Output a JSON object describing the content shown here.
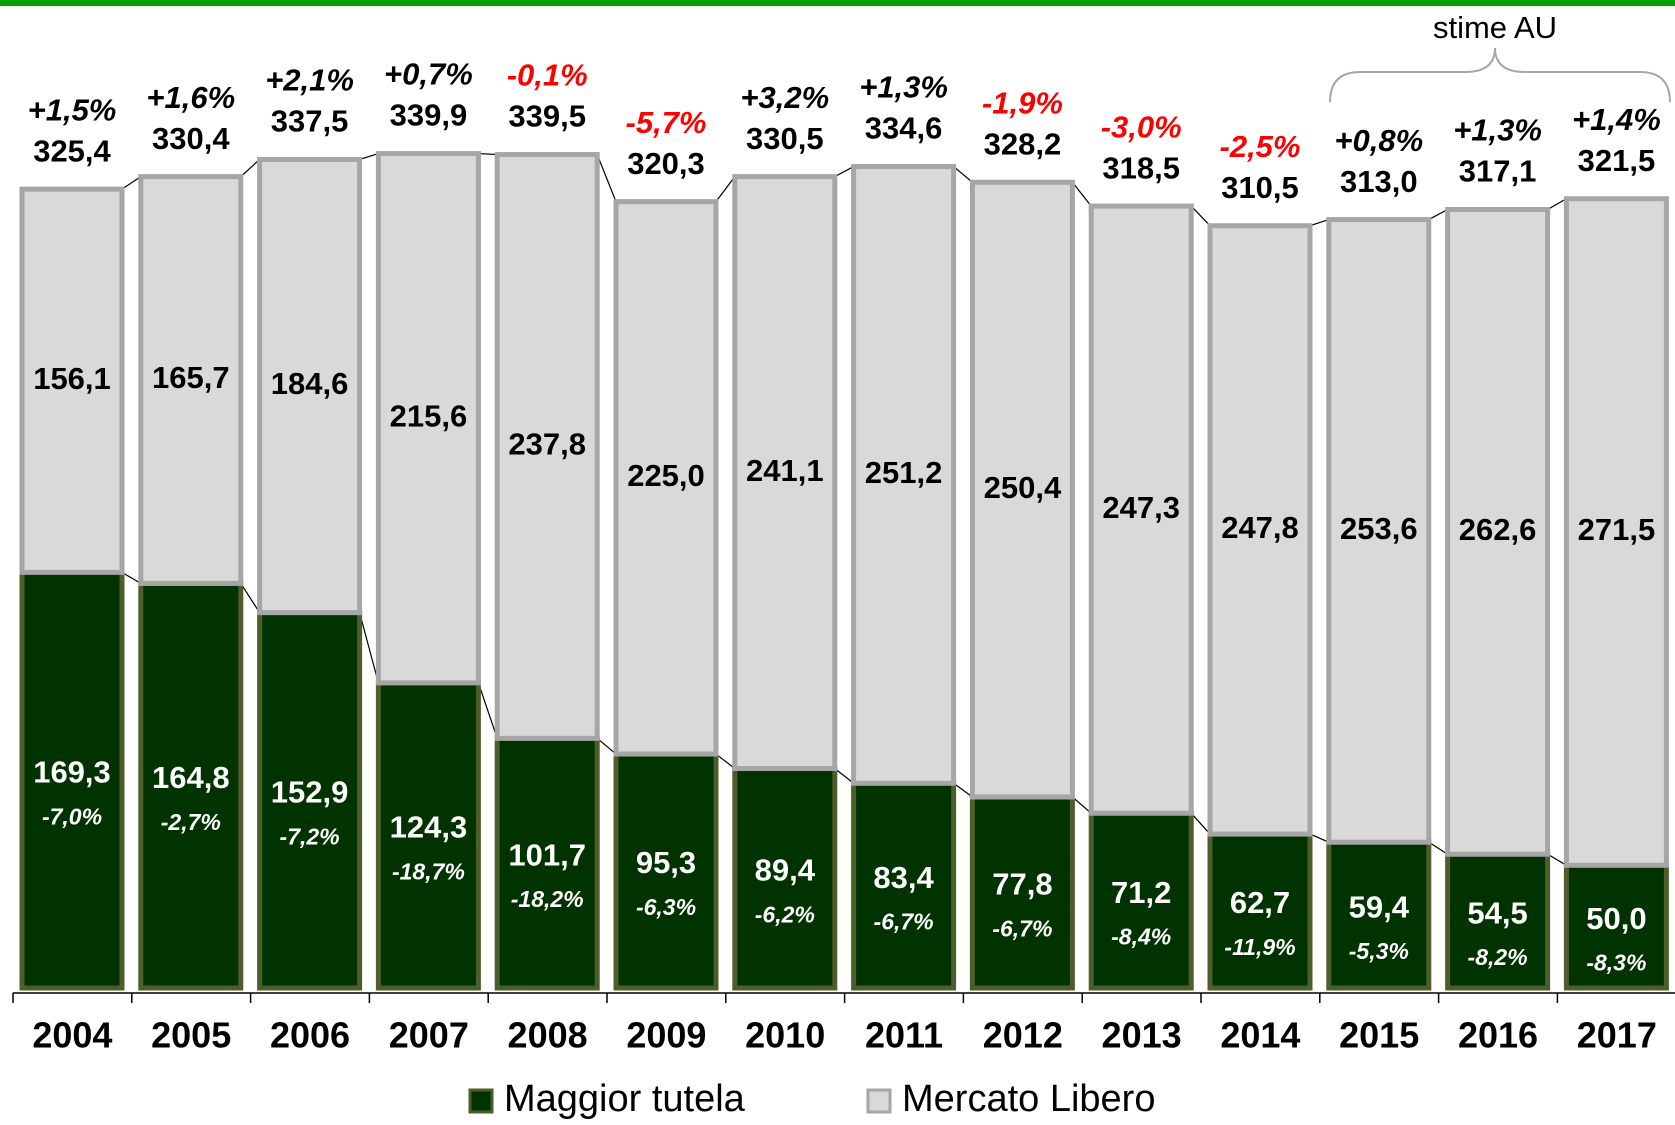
{
  "chart_data": {
    "type": "bar",
    "stacked": true,
    "categories": [
      "2004",
      "2005",
      "2006",
      "2007",
      "2008",
      "2009",
      "2010",
      "2011",
      "2012",
      "2013",
      "2014",
      "2015",
      "2016",
      "2017"
    ],
    "series": [
      {
        "name": "Maggior tutela",
        "color": "#003300",
        "edge_color": "#4d5e2a",
        "values": [
          169.3,
          164.8,
          152.9,
          124.3,
          101.7,
          95.3,
          89.4,
          83.4,
          77.8,
          71.2,
          62.7,
          59.4,
          54.5,
          50.0
        ],
        "value_labels": [
          "169,3",
          "164,8",
          "152,9",
          "124,3",
          "101,7",
          "95,3",
          "89,4",
          "83,4",
          "77,8",
          "71,2",
          "62,7",
          "59,4",
          "54,5",
          "50,0"
        ],
        "change": {
          "values": [
            -7.0,
            -2.7,
            -7.2,
            -18.7,
            -18.2,
            -6.3,
            -6.2,
            -6.7,
            -6.7,
            -8.4,
            -11.9,
            -5.3,
            -8.2,
            -8.3
          ],
          "value_labels": [
            "-7,0%",
            "-2,7%",
            "-7,2%",
            "-18,7%",
            "-18,2%",
            "-6,3%",
            "-6,2%",
            "-6,7%",
            "-6,7%",
            "-8,4%",
            "-11,9%",
            "-5,3%",
            "-8,2%",
            "-8,3%"
          ]
        }
      },
      {
        "name": "Mercato Libero",
        "color": "#d9d9d9",
        "edge_color": "#a6a6a6",
        "values": [
          156.1,
          165.7,
          184.6,
          215.6,
          237.8,
          225.0,
          241.1,
          251.2,
          250.4,
          247.3,
          247.8,
          253.6,
          262.6,
          271.5
        ],
        "value_labels": [
          "156,1",
          "165,7",
          "184,6",
          "215,6",
          "237,8",
          "225,0",
          "241,1",
          "251,2",
          "250,4",
          "247,3",
          "247,8",
          "253,6",
          "262,6",
          "271,5"
        ]
      }
    ],
    "totals": {
      "values": [
        325.4,
        330.4,
        337.5,
        339.9,
        339.5,
        320.3,
        330.5,
        334.6,
        328.2,
        318.5,
        310.5,
        313.0,
        317.1,
        321.5
      ],
      "value_labels": [
        "325,4",
        "330,4",
        "337,5",
        "339,9",
        "339,5",
        "320,3",
        "330,5",
        "334,6",
        "328,2",
        "318,5",
        "310,5",
        "313,0",
        "317,1",
        "321,5"
      ],
      "change": {
        "values": [
          1.5,
          1.6,
          2.1,
          0.7,
          -0.1,
          -5.7,
          3.2,
          1.3,
          -1.9,
          -3.0,
          -2.5,
          0.8,
          1.3,
          1.4
        ],
        "value_labels": [
          "+1,5%",
          "+1,6%",
          "+2,1%",
          "+0,7%",
          "-0,1%",
          "-5,7%",
          "+3,2%",
          "+1,3%",
          "-1,9%",
          "-3,0%",
          "-2,5%",
          "+0,8%",
          "+1,3%",
          "+1,4%"
        ]
      },
      "positive_color": "#000000",
      "negative_color": "#ff0000"
    },
    "annotation": "stime AU"
  }
}
